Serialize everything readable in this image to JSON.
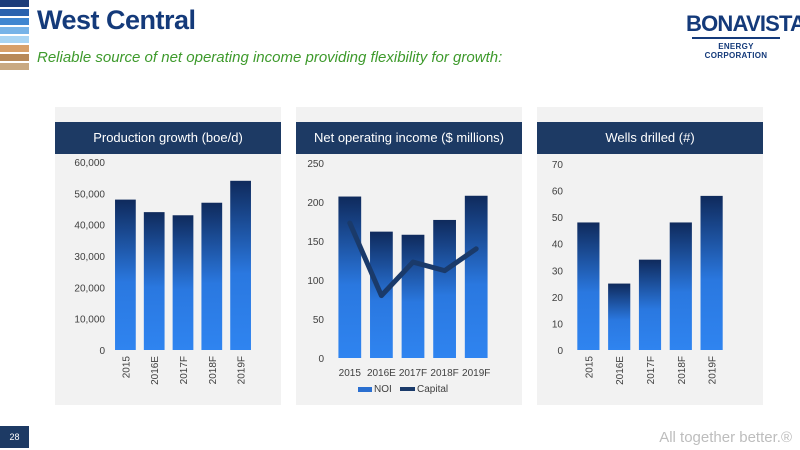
{
  "header": {
    "title": "West Central",
    "subtitle": "Reliable source of net operating income providing flexibility for growth:"
  },
  "logo": {
    "name": "BONAVISTA",
    "sub": "ENERGY CORPORATION"
  },
  "footer": {
    "page_number": "28",
    "tagline": "All together better.®"
  },
  "colors": {
    "stripes": [
      "#1d3d7a",
      "#2a62ae",
      "#3f86d0",
      "#76b3e8",
      "#a9d5f4",
      "#d8a06a",
      "#b88959",
      "#c9a982"
    ],
    "navy": "#1d3a64",
    "bar_gradient": [
      "#0f2a5c",
      "#2a78e0",
      "#2f84f0"
    ],
    "capital_line": "#1a3a6a"
  },
  "chart_data": [
    {
      "type": "bar",
      "title": "Production growth (boe/d)",
      "categories": [
        "2015",
        "2016E",
        "2017F",
        "2018F",
        "2019F"
      ],
      "values": [
        48000,
        44000,
        43000,
        47000,
        54000
      ],
      "ylim": [
        0,
        60000
      ],
      "ytick_labels": [
        "0",
        "10,000",
        "20,000",
        "30,000",
        "40,000",
        "50,000",
        "60,000"
      ],
      "xtick_rotated": true,
      "grid": false
    },
    {
      "type": "bar",
      "title": "Net operating income ($ millions)",
      "categories": [
        "2015",
        "2016E",
        "2017F",
        "2018F",
        "2019F"
      ],
      "ylim": [
        0,
        250
      ],
      "ytick_labels": [
        "0",
        "50",
        "100",
        "150",
        "200",
        "250"
      ],
      "xtick_rotated": false,
      "grid": false,
      "series": [
        {
          "name": "NOI",
          "type": "bar",
          "values": [
            207,
            162,
            158,
            177,
            208
          ]
        },
        {
          "name": "Capital",
          "type": "line",
          "values": [
            173,
            80,
            123,
            112,
            140
          ]
        }
      ],
      "legend": "bottom"
    },
    {
      "type": "bar",
      "title": "Wells drilled (#)",
      "categories": [
        "2015",
        "2016E",
        "2017F",
        "2018F",
        "2019F"
      ],
      "values": [
        48,
        25,
        34,
        48,
        58
      ],
      "ylim": [
        0,
        70
      ],
      "ytick_labels": [
        "0",
        "10",
        "20",
        "30",
        "40",
        "50",
        "60",
        "70"
      ],
      "xtick_rotated": true,
      "grid": false
    }
  ]
}
